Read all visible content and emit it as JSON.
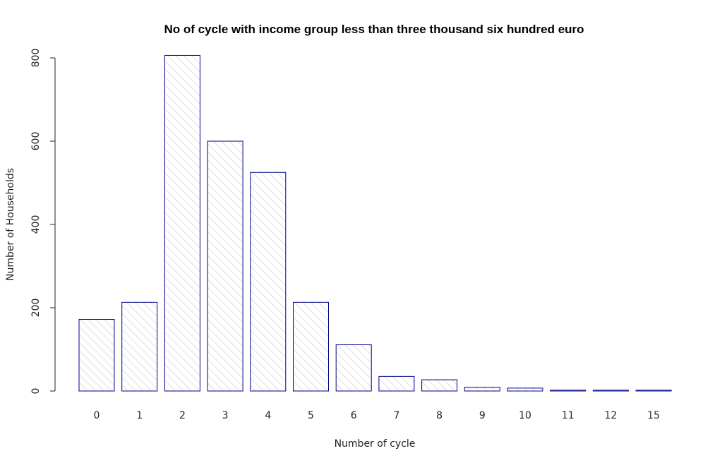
{
  "chart_data": {
    "type": "bar",
    "title": "No of cycle with income group less than three thousand six hundred euro",
    "xlabel": "Number of cycle",
    "ylabel": "Number of Households",
    "categories": [
      "0",
      "1",
      "2",
      "3",
      "4",
      "5",
      "6",
      "7",
      "8",
      "9",
      "10",
      "11",
      "12",
      "15"
    ],
    "values": [
      172,
      213,
      806,
      600,
      525,
      213,
      111,
      35,
      27,
      9,
      7,
      2,
      2,
      2
    ],
    "ylim": [
      0,
      800
    ],
    "yticks": [
      "0",
      "200",
      "400",
      "600",
      "800"
    ],
    "grid": false,
    "legend": "none",
    "bar_border_color": "#00008b",
    "bar_hatch_color": "#b8b8b8"
  }
}
